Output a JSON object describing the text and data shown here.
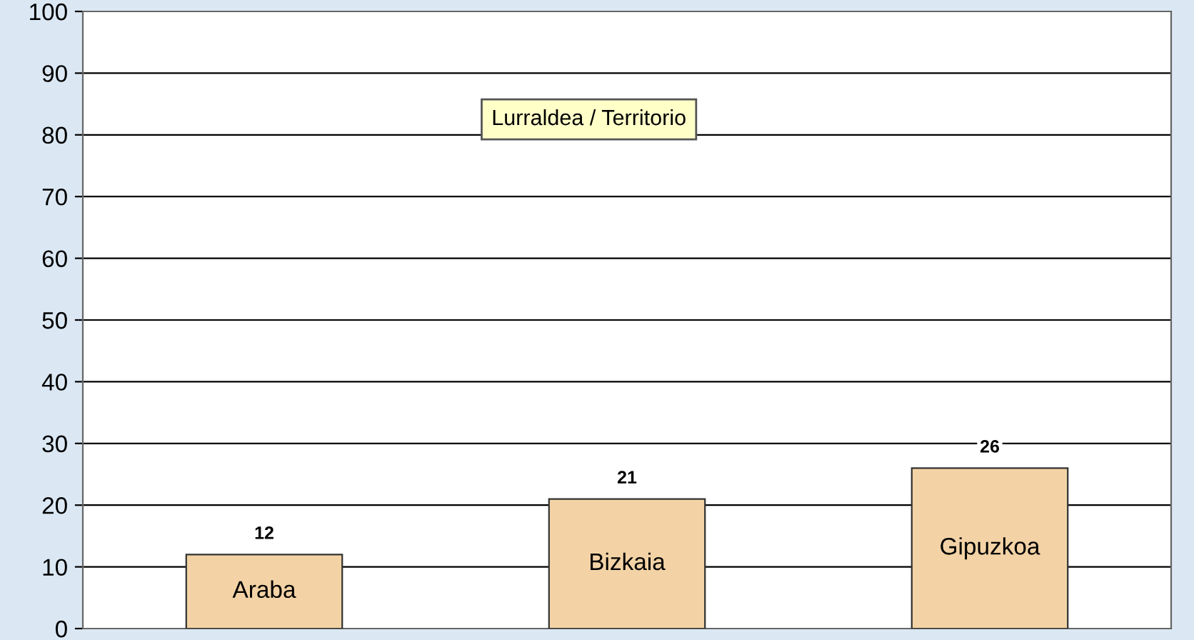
{
  "chart_data": {
    "type": "bar",
    "title": "Lurraldea / Territorio",
    "categories": [
      "Araba",
      "Bizkaia",
      "Gipuzkoa"
    ],
    "values": [
      12,
      21,
      26
    ],
    "color": "#f3d3a5",
    "ylim": [
      0,
      100
    ],
    "yticks": [
      0,
      10,
      20,
      30,
      40,
      50,
      60,
      70,
      80,
      90,
      100
    ],
    "grid": "y",
    "data_labels": true
  }
}
